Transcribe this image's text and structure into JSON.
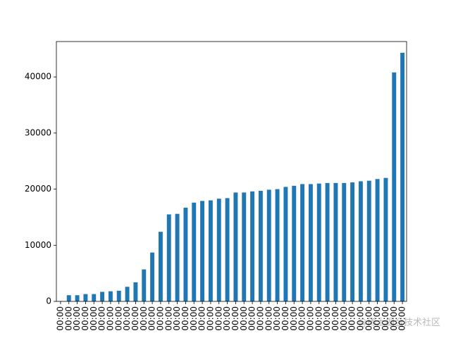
{
  "chart_data": {
    "type": "bar",
    "categories": [
      "00:00",
      "00:00",
      "00:00",
      "00:00",
      "00:00",
      "00:00",
      "00:00",
      "00:00",
      "00:00",
      "00:00",
      "00:00",
      "00:00",
      "00:00",
      "00:00",
      "00:00",
      "00:00",
      "00:00",
      "00:00",
      "00:00",
      "00:00",
      "00:00",
      "00:00",
      "00:00",
      "00:00",
      "00:00",
      "00:00",
      "00:00",
      "00:00",
      "00:00",
      "00:00",
      "00:00",
      "00:00",
      "00:00",
      "00:00",
      "00:00",
      "00:00",
      "00:00",
      "00:00",
      "00:00",
      "00:00",
      "00:00",
      "00:00"
    ],
    "values": [
      50,
      1100,
      1100,
      1300,
      1300,
      1700,
      1800,
      1900,
      2600,
      3400,
      5700,
      8700,
      12400,
      15500,
      15600,
      16700,
      17600,
      17900,
      18000,
      18300,
      18400,
      19400,
      19400,
      19600,
      19700,
      19900,
      20000,
      20400,
      20600,
      20900,
      20900,
      21000,
      21100,
      21100,
      21100,
      21200,
      21400,
      21500,
      21800,
      22000,
      40800,
      44300
    ],
    "color": "#1f77b4",
    "ylim": [
      0,
      46300
    ],
    "yticks": [
      0,
      10000,
      20000,
      30000,
      40000
    ],
    "grid": false,
    "watermark": "@稀土掘金技术社区"
  }
}
